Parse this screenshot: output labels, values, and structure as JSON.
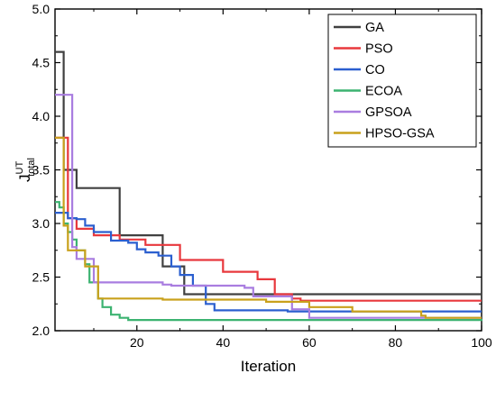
{
  "chart_data": {
    "type": "line",
    "title": "",
    "xlabel": "Iteration",
    "ylabel": {
      "base": "J",
      "sup": "UT",
      "sub": "total"
    },
    "xlim": [
      1,
      100
    ],
    "ylim": [
      2.0,
      5.0
    ],
    "xticks": [
      20,
      40,
      60,
      80,
      100
    ],
    "yticks": [
      2.0,
      2.5,
      3.0,
      3.5,
      4.0,
      4.5,
      5.0
    ],
    "grid": false,
    "legend_position": "top-right",
    "series": [
      {
        "name": "GA",
        "color": "#404040",
        "x": [
          1,
          2,
          3,
          5,
          6,
          15,
          16,
          25,
          26,
          30,
          31,
          100
        ],
        "y": [
          4.6,
          4.6,
          3.5,
          3.5,
          3.33,
          3.33,
          2.89,
          2.89,
          2.6,
          2.6,
          2.34,
          2.34
        ]
      },
      {
        "name": "PSO",
        "color": "#e8383d",
        "x": [
          1,
          2,
          4,
          6,
          10,
          16,
          22,
          25,
          30,
          32,
          36,
          40,
          42,
          48,
          52,
          56,
          58,
          100
        ],
        "y": [
          3.8,
          3.8,
          3.05,
          2.95,
          2.89,
          2.85,
          2.8,
          2.8,
          2.66,
          2.66,
          2.66,
          2.55,
          2.55,
          2.48,
          2.34,
          2.3,
          2.28,
          2.28
        ]
      },
      {
        "name": "CO",
        "color": "#2b5fcf",
        "x": [
          1,
          4,
          6,
          8,
          10,
          14,
          18,
          20,
          22,
          25,
          28,
          30,
          33,
          36,
          38,
          45,
          55,
          100
        ],
        "y": [
          3.1,
          3.05,
          3.04,
          2.98,
          2.92,
          2.84,
          2.82,
          2.76,
          2.73,
          2.7,
          2.6,
          2.52,
          2.42,
          2.25,
          2.19,
          2.19,
          2.18,
          2.18
        ]
      },
      {
        "name": "ECOA",
        "color": "#3cb371",
        "x": [
          1,
          2,
          3,
          4,
          5,
          6,
          8,
          9,
          11,
          12,
          14,
          16,
          18,
          25,
          100
        ],
        "y": [
          3.2,
          3.15,
          3.0,
          2.92,
          2.85,
          2.75,
          2.62,
          2.45,
          2.3,
          2.22,
          2.15,
          2.12,
          2.1,
          2.1,
          2.09
        ]
      },
      {
        "name": "GPSOA",
        "color": "#a97de0",
        "x": [
          1,
          4,
          5,
          6,
          7,
          10,
          11,
          26,
          28,
          45,
          47,
          56,
          60,
          100
        ],
        "y": [
          4.2,
          4.2,
          2.78,
          2.67,
          2.67,
          2.45,
          2.45,
          2.43,
          2.42,
          2.4,
          2.32,
          2.2,
          2.12,
          2.12
        ]
      },
      {
        "name": "HPSO-GSA",
        "color": "#c9a11c",
        "x": [
          1,
          2,
          3,
          4,
          7,
          8,
          10,
          11,
          24,
          26,
          50,
          60,
          70,
          86,
          87,
          100
        ],
        "y": [
          3.8,
          3.8,
          2.98,
          2.75,
          2.75,
          2.6,
          2.6,
          2.3,
          2.3,
          2.29,
          2.27,
          2.22,
          2.18,
          2.14,
          2.12,
          2.12
        ]
      }
    ]
  }
}
